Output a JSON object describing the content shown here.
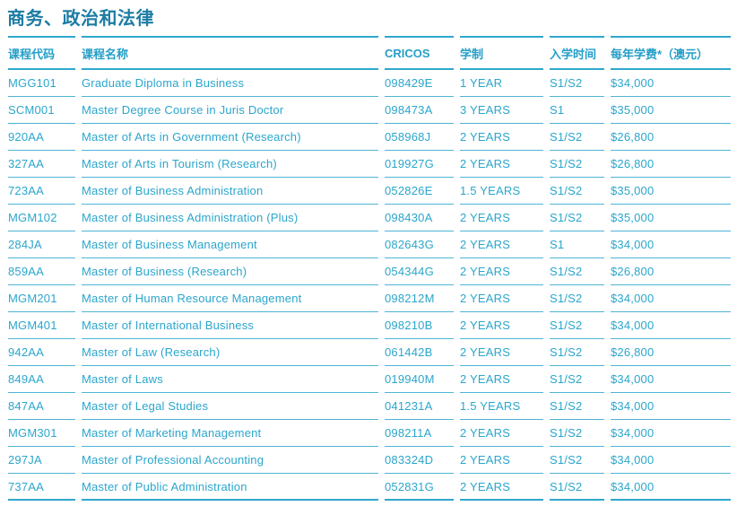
{
  "page": {
    "title": "商务、政治和法律"
  },
  "colors": {
    "title_color": "#1d7ca4",
    "text_color": "#2ba6cc",
    "header_text_color": "#249ec7",
    "rule_light": "#4fb4d6",
    "rule_heavy": "#2fa7cc"
  },
  "table": {
    "columns": [
      {
        "key": "code",
        "label": "课程代码"
      },
      {
        "key": "name",
        "label": "课程名称"
      },
      {
        "key": "cricos",
        "label": "CRICOS"
      },
      {
        "key": "duration",
        "label": "学制"
      },
      {
        "key": "intake",
        "label": "入学时间"
      },
      {
        "key": "fee",
        "label": "每年学费*（澳元）"
      }
    ],
    "rows": [
      {
        "code": "MGG101",
        "name": "Graduate Diploma in Business",
        "cricos": "098429E",
        "duration": "1 YEAR",
        "intake": "S1/S2",
        "fee": "$34,000"
      },
      {
        "code": "SCM001",
        "name": "Master Degree Course in Juris Doctor",
        "cricos": "098473A",
        "duration": "3 YEARS",
        "intake": "S1",
        "fee": "$35,000"
      },
      {
        "code": "920AA",
        "name": "Master of Arts in Government (Research)",
        "cricos": "058968J",
        "duration": "2 YEARS",
        "intake": "S1/S2",
        "fee": "$26,800"
      },
      {
        "code": "327AA",
        "name": "Master of Arts in Tourism (Research)",
        "cricos": "019927G",
        "duration": "2 YEARS",
        "intake": "S1/S2",
        "fee": "$26,800"
      },
      {
        "code": "723AA",
        "name": "Master of Business Administration",
        "cricos": "052826E",
        "duration": "1.5 YEARS",
        "intake": "S1/S2",
        "fee": "$35,000"
      },
      {
        "code": "MGM102",
        "name": "Master of Business Administration (Plus)",
        "cricos": "098430A",
        "duration": "2 YEARS",
        "intake": "S1/S2",
        "fee": "$35,000"
      },
      {
        "code": "284JA",
        "name": "Master of Business Management",
        "cricos": "082643G",
        "duration": "2 YEARS",
        "intake": "S1",
        "fee": "$34,000"
      },
      {
        "code": "859AA",
        "name": "Master of Business (Research)",
        "cricos": "054344G",
        "duration": "2 YEARS",
        "intake": "S1/S2",
        "fee": "$26,800"
      },
      {
        "code": "MGM201",
        "name": "Master of Human Resource Management",
        "cricos": "098212M",
        "duration": "2 YEARS",
        "intake": "S1/S2",
        "fee": "$34,000"
      },
      {
        "code": "MGM401",
        "name": "Master of International Business",
        "cricos": "098210B",
        "duration": "2 YEARS",
        "intake": "S1/S2",
        "fee": "$34,000"
      },
      {
        "code": "942AA",
        "name": "Master of Law (Research)",
        "cricos": "061442B",
        "duration": "2 YEARS",
        "intake": "S1/S2",
        "fee": "$26,800"
      },
      {
        "code": "849AA",
        "name": "Master of Laws",
        "cricos": "019940M",
        "duration": "2 YEARS",
        "intake": "S1/S2",
        "fee": "$34,000"
      },
      {
        "code": "847AA",
        "name": "Master of Legal Studies",
        "cricos": "041231A",
        "duration": "1.5 YEARS",
        "intake": "S1/S2",
        "fee": "$34,000"
      },
      {
        "code": "MGM301",
        "name": "Master of Marketing Management",
        "cricos": "098211A",
        "duration": "2 YEARS",
        "intake": "S1/S2",
        "fee": "$34,000"
      },
      {
        "code": "297JA",
        "name": "Master of Professional Accounting",
        "cricos": "083324D",
        "duration": "2 YEARS",
        "intake": "S1/S2",
        "fee": "$34,000"
      },
      {
        "code": "737AA",
        "name": "Master of Public Administration",
        "cricos": "052831G",
        "duration": "2 YEARS",
        "intake": "S1/S2",
        "fee": "$34,000"
      }
    ]
  }
}
